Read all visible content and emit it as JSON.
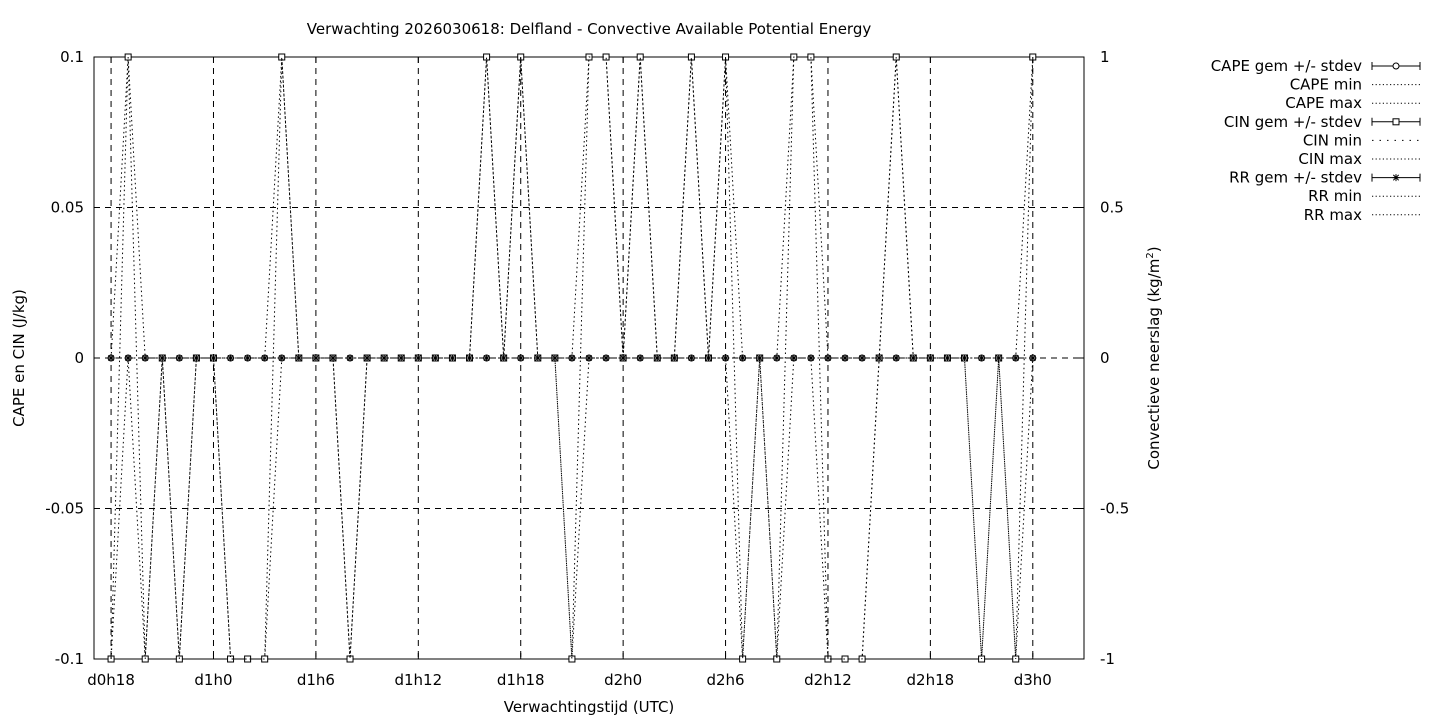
{
  "chart_data": {
    "type": "line",
    "title": "Verwachting 2026030618: Delfland - Convective Available Potential Energy",
    "xlabel": "Verwachtingstijd (UTC)",
    "ylabel": "CAPE en CIN (J/kg)",
    "y2label_main": "Convectieve neerslag (kg/m",
    "y2label_sup": "2",
    "y2label_end": ")",
    "x_unit": "hours since d0h0",
    "xlim": [
      17,
      75
    ],
    "ylim": [
      -0.1,
      0.1
    ],
    "y2lim": [
      -1,
      1
    ],
    "grid": true,
    "legend_position": "top-right (outside plot)",
    "x_ticks": [
      {
        "x": 18,
        "label": "d0h18"
      },
      {
        "x": 24,
        "label": "d1h0"
      },
      {
        "x": 30,
        "label": "d1h6"
      },
      {
        "x": 36,
        "label": "d1h12"
      },
      {
        "x": 42,
        "label": "d1h18"
      },
      {
        "x": 48,
        "label": "d2h0"
      },
      {
        "x": 54,
        "label": "d2h6"
      },
      {
        "x": 60,
        "label": "d2h12"
      },
      {
        "x": 66,
        "label": "d2h18"
      },
      {
        "x": 72,
        "label": "d3h0"
      }
    ],
    "y_ticks": [
      {
        "y": 0.1,
        "label": "0.1"
      },
      {
        "y": 0.05,
        "label": "0.05"
      },
      {
        "y": 0,
        "label": "0"
      },
      {
        "y": -0.05,
        "label": "-0.05"
      },
      {
        "y": -0.1,
        "label": "-0.1"
      }
    ],
    "y2_ticks": [
      {
        "y": 1,
        "label": "1"
      },
      {
        "y": 0.5,
        "label": "0.5"
      },
      {
        "y": 0,
        "label": "0"
      },
      {
        "y": -0.5,
        "label": "-0.5"
      },
      {
        "y": -1,
        "label": "-1"
      }
    ],
    "x": [
      18,
      19,
      20,
      21,
      22,
      23,
      24,
      25,
      26,
      27,
      28,
      29,
      30,
      31,
      32,
      33,
      34,
      35,
      36,
      37,
      38,
      39,
      40,
      41,
      42,
      43,
      44,
      45,
      46,
      47,
      48,
      49,
      50,
      51,
      52,
      53,
      54,
      55,
      56,
      57,
      58,
      59,
      60,
      61,
      62,
      63,
      64,
      65,
      66,
      67,
      68,
      69,
      70,
      71,
      72
    ],
    "series": [
      {
        "name": "CAPE gem +/- stdev",
        "marker": "circle",
        "values": [
          0,
          0,
          0,
          0,
          0,
          0,
          0,
          0,
          0,
          0,
          0,
          0,
          0,
          0,
          0,
          0,
          0,
          0,
          0,
          0,
          0,
          0,
          0,
          0,
          0,
          0,
          0,
          0,
          0,
          0,
          0,
          0,
          0,
          0,
          0,
          0,
          0,
          0,
          0,
          0,
          0,
          0,
          0,
          0,
          0,
          0,
          0,
          0,
          0,
          0,
          0,
          0,
          0,
          0,
          0
        ]
      },
      {
        "name": "CAPE min",
        "marker": "none",
        "values": [
          0,
          0,
          0,
          0,
          0,
          0,
          0,
          0,
          0,
          0,
          0,
          0,
          0,
          0,
          0,
          0,
          0,
          0,
          0,
          0,
          0,
          0,
          0,
          0,
          0,
          0,
          0,
          0,
          0,
          0,
          0,
          0,
          0,
          0,
          0,
          0,
          0,
          0,
          0,
          0,
          0,
          0,
          0,
          0,
          0,
          0,
          0,
          0,
          0,
          0,
          0,
          0,
          0,
          0,
          0
        ]
      },
      {
        "name": "CAPE max",
        "marker": "none",
        "values": [
          0,
          0,
          0,
          0,
          0,
          0,
          0,
          0,
          0,
          0,
          0,
          0,
          0,
          0,
          0,
          0,
          0,
          0,
          0,
          0,
          0,
          0,
          0,
          0,
          0,
          0,
          0,
          0,
          0,
          0,
          0,
          0,
          0,
          0,
          0,
          0,
          0,
          0,
          0,
          0,
          0,
          0,
          0,
          0,
          0,
          0,
          0,
          0,
          0,
          0,
          0,
          0,
          0,
          0,
          0
        ]
      },
      {
        "name": "CIN gem +/- stdev",
        "marker": "square",
        "values": [
          -0.1,
          0.1,
          -0.1,
          0,
          -0.1,
          0,
          0,
          -0.1,
          -0.1,
          -0.1,
          0.1,
          0,
          0,
          0,
          -0.1,
          0,
          0,
          0,
          0,
          0,
          0,
          0,
          0.1,
          0,
          0.1,
          0,
          0,
          -0.1,
          0.1,
          0.1,
          0,
          0.1,
          0,
          0,
          0.1,
          0,
          0.1,
          -0.1,
          0,
          -0.1,
          0.1,
          0.1,
          -0.1,
          -0.1,
          -0.1,
          0,
          0.1,
          0,
          0,
          0,
          0,
          -0.1,
          0,
          -0.1,
          0.1
        ]
      },
      {
        "name": "CIN min",
        "marker": "none",
        "values": [
          -0.1,
          0,
          -0.1,
          0,
          -0.1,
          0,
          0,
          -0.1,
          -0.1,
          -0.1,
          0,
          0,
          0,
          0,
          -0.1,
          0,
          0,
          0,
          0,
          0,
          0,
          0,
          0,
          0,
          0,
          0,
          0,
          -0.1,
          0,
          0,
          0,
          0,
          0,
          0,
          0,
          0,
          0,
          -0.1,
          0,
          -0.1,
          0,
          0,
          -0.1,
          -0.1,
          -0.1,
          0,
          0,
          0,
          0,
          0,
          0,
          -0.1,
          0,
          -0.1,
          0
        ]
      },
      {
        "name": "CIN max",
        "marker": "none",
        "values": [
          0,
          0.1,
          0,
          0,
          0,
          0,
          0,
          0,
          0,
          0,
          0.1,
          0,
          0,
          0,
          0,
          0,
          0,
          0,
          0,
          0,
          0,
          0,
          0.1,
          0,
          0.1,
          0,
          0,
          0,
          0.1,
          0.1,
          0,
          0.1,
          0,
          0,
          0.1,
          0,
          0.1,
          0,
          0,
          0,
          0.1,
          0.1,
          0,
          0,
          0,
          0,
          0.1,
          0,
          0,
          0,
          0,
          0,
          0,
          0,
          0.1
        ]
      },
      {
        "name": "RR gem +/- stdev",
        "marker": "star",
        "axis": "y2",
        "values": [
          0,
          0,
          0,
          0,
          0,
          0,
          0,
          0,
          0,
          0,
          0,
          0,
          0,
          0,
          0,
          0,
          0,
          0,
          0,
          0,
          0,
          0,
          0,
          0,
          0,
          0,
          0,
          0,
          0,
          0,
          0,
          0,
          0,
          0,
          0,
          0,
          0,
          0,
          0,
          0,
          0,
          0,
          0,
          0,
          0,
          0,
          0,
          0,
          0,
          0,
          0,
          0,
          0,
          0,
          0
        ]
      },
      {
        "name": "RR min",
        "marker": "none",
        "axis": "y2",
        "values": [
          0,
          0,
          0,
          0,
          0,
          0,
          0,
          0,
          0,
          0,
          0,
          0,
          0,
          0,
          0,
          0,
          0,
          0,
          0,
          0,
          0,
          0,
          0,
          0,
          0,
          0,
          0,
          0,
          0,
          0,
          0,
          0,
          0,
          0,
          0,
          0,
          0,
          0,
          0,
          0,
          0,
          0,
          0,
          0,
          0,
          0,
          0,
          0,
          0,
          0,
          0,
          0,
          0,
          0,
          0
        ]
      },
      {
        "name": "RR max",
        "marker": "none",
        "axis": "y2",
        "values": [
          0,
          0,
          0,
          0,
          0,
          0,
          0,
          0,
          0,
          0,
          0,
          0,
          0,
          0,
          0,
          0,
          0,
          0,
          0,
          0,
          0,
          0,
          0,
          0,
          0,
          0,
          0,
          0,
          0,
          0,
          0,
          0,
          0,
          0,
          0,
          0,
          0,
          0,
          0,
          0,
          0,
          0,
          0,
          0,
          0,
          0,
          0,
          0,
          0,
          0,
          0,
          0,
          0,
          0,
          0
        ]
      }
    ],
    "legend": [
      {
        "label": "CAPE gem +/- stdev",
        "style": "errorbar",
        "marker": "circle"
      },
      {
        "label": "CAPE min",
        "style": "dotted"
      },
      {
        "label": "CAPE max",
        "style": "dotted"
      },
      {
        "label": "CIN gem +/- stdev",
        "style": "errorbar",
        "marker": "square"
      },
      {
        "label": "CIN min",
        "style": "dotted-sparse"
      },
      {
        "label": "CIN max",
        "style": "dotted"
      },
      {
        "label": "RR gem +/- stdev",
        "style": "errorbar",
        "marker": "star"
      },
      {
        "label": "RR min",
        "style": "dotted"
      },
      {
        "label": "RR max",
        "style": "dotted"
      }
    ]
  }
}
